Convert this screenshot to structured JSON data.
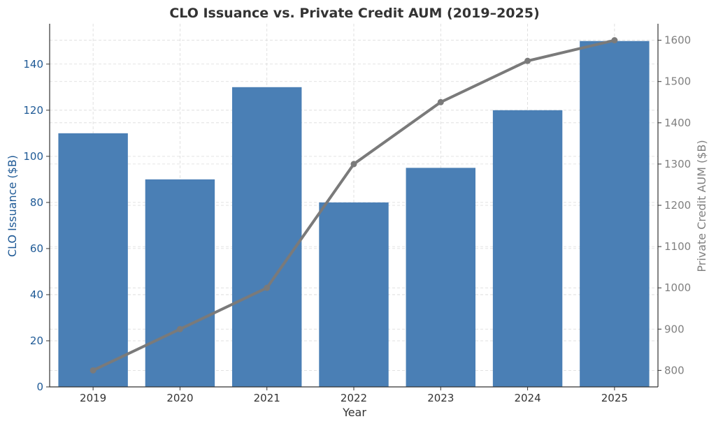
{
  "chart_data": {
    "type": "bar",
    "title": "CLO Issuance vs. Private Credit AUM (2019–2025)",
    "xlabel": "Year",
    "categories": [
      "2019",
      "2020",
      "2021",
      "2022",
      "2023",
      "2024",
      "2025"
    ],
    "series": [
      {
        "name": "CLO Issuance ($B)",
        "type": "bar",
        "axis": "left",
        "color": "#4a7fb5",
        "values": [
          110,
          90,
          130,
          80,
          95,
          120,
          150
        ]
      },
      {
        "name": "Private Credit AUM ($B)",
        "type": "line",
        "axis": "right",
        "color": "#7a7a7a",
        "values": [
          800,
          900,
          1000,
          1300,
          1450,
          1550,
          1600
        ]
      }
    ],
    "y_left": {
      "label": "CLO Issuance ($B)",
      "range": [
        0,
        157.5
      ],
      "ticks": [
        "0",
        "20",
        "40",
        "60",
        "80",
        "100",
        "120",
        "140"
      ],
      "color": "#1f5a96"
    },
    "y_right": {
      "label": "Private Credit AUM ($B)",
      "range": [
        760,
        1640
      ],
      "ticks": [
        "800",
        "900",
        "1000",
        "1100",
        "1200",
        "1300",
        "1400",
        "1500",
        "1600"
      ],
      "color": "#808080"
    },
    "grid": true
  }
}
